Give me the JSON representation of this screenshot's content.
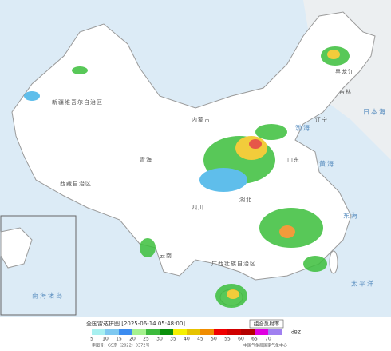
{
  "legend": {
    "title": "全国雷达拼图 [2025-06-14 05:48:00]",
    "product": "组合反射率",
    "unit": "dBZ",
    "items": [
      {
        "value": 5,
        "color": "#a8f0f0"
      },
      {
        "value": 10,
        "color": "#7ec8f0"
      },
      {
        "value": 15,
        "color": "#3c8cf0"
      },
      {
        "value": 20,
        "color": "#a6f28f"
      },
      {
        "value": 25,
        "color": "#3dba3d"
      },
      {
        "value": 30,
        "color": "#0a8f0a"
      },
      {
        "value": 35,
        "color": "#f5f000"
      },
      {
        "value": 40,
        "color": "#e6c300"
      },
      {
        "value": 45,
        "color": "#f08c00"
      },
      {
        "value": 50,
        "color": "#f00000"
      },
      {
        "value": 55,
        "color": "#d00000"
      },
      {
        "value": 60,
        "color": "#b40000"
      },
      {
        "value": 65,
        "color": "#e000e0"
      },
      {
        "value": 70,
        "color": "#a080f0"
      }
    ]
  },
  "labels": [
    "新疆维吾尔自治区",
    "西藏自治区",
    "青海",
    "内蒙古",
    "黑龙江",
    "吉林",
    "辽宁",
    "山东",
    "湖北",
    "广西壮族自治区",
    "云南",
    "四川"
  ],
  "seas": [
    "黄海",
    "东海",
    "太平洋",
    "渤海",
    "日本海",
    "南海诸岛"
  ],
  "footer": {
    "approval": "审图号：GS京（2022）0372号",
    "issuer": "中国气象局国家气象中心"
  }
}
